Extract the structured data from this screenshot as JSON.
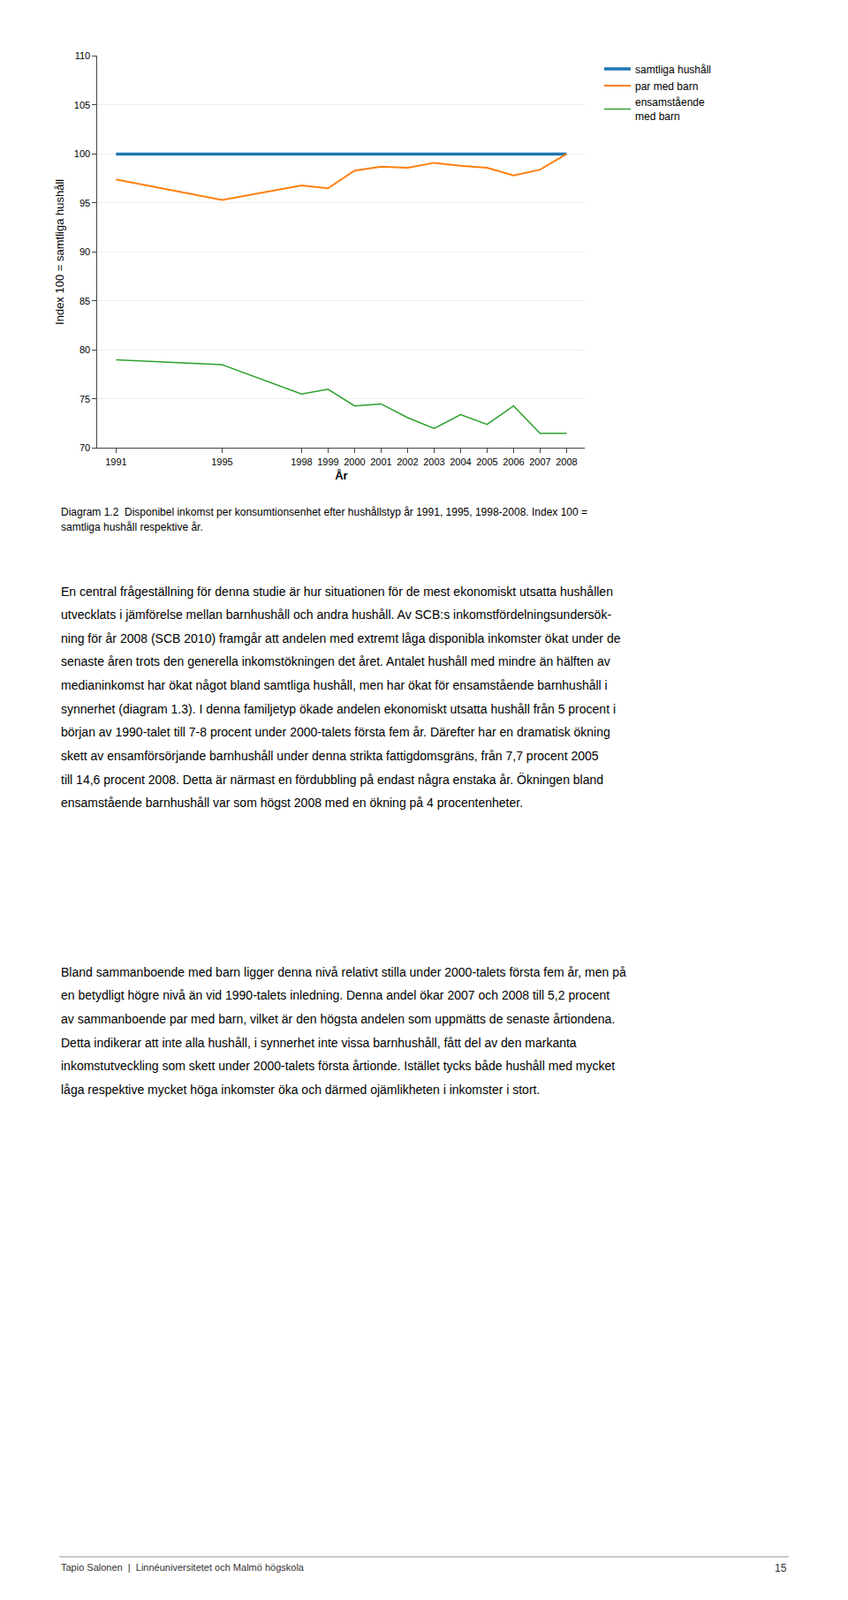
{
  "chart_data": {
    "type": "line",
    "x": [
      1991,
      1995,
      1998,
      1999,
      2000,
      2001,
      2002,
      2003,
      2004,
      2005,
      2006,
      2007,
      2008
    ],
    "xlabel": "År",
    "ylabel": "Index 100 = samtliga hushåll",
    "series": [
      {
        "name": "samtliga hushåll",
        "values": [
          100,
          100,
          100,
          100,
          100,
          100,
          100,
          100,
          100,
          100,
          100,
          100,
          100
        ]
      },
      {
        "name": "par med barn",
        "values": [
          97.4,
          95.3,
          96.8,
          96.5,
          98.3,
          98.7,
          98.6,
          99.1,
          98.8,
          98.6,
          97.8,
          98.4,
          100.0
        ]
      },
      {
        "name": "ensamstående\nmed barn",
        "values": [
          79.0,
          78.5,
          75.5,
          76.0,
          74.3,
          74.5,
          73.1,
          72.0,
          73.4,
          72.4,
          74.3,
          71.5,
          71.5
        ]
      }
    ],
    "xlim": [
      1990.3,
      2008.7
    ],
    "xticks": [
      1991,
      1995,
      1998,
      1999,
      2000,
      2001,
      2002,
      2003,
      2004,
      2005,
      2006,
      2007,
      2008
    ],
    "ylim": [
      70,
      110
    ],
    "yticks": [
      70,
      75,
      80,
      85,
      90,
      95,
      100,
      105,
      110
    ],
    "grid": true,
    "legend": "right",
    "annotations": [
      "Diagram 1.2  Disponibel inkomst per konsumtionsenhet efter hushållstyp år 1991, 1995, 1998-2008. Index 100 =\nsamtliga hushåll respektive år.",
      "En central frågeställning för denna studie är hur situationen för de mest ekonomiskt utsatta hushållen\nutvecklats i jämförelse mellan barnhushåll och andra hushåll. Av SCB:s inkomstfördelningsundersök-\nning för år 2008 (SCB 2010) framgår att andelen med extremt låga disponibla inkomster ökat under de\nsenaste åren trots den generella inkomstökningen det året. Antalet hushåll med mindre än hälften av\nmedianinkomst har ökat något bland samtliga hushåll, men har ökat för ensamstående barnhushåll i\nsynnerhet (diagram 1.3). I denna familjetyp ökade andelen ekonomiskt utsatta hushåll från 5 procent i\nbörjan av 1990-talet till 7-8 procent under 2000-talets första fem år. Därefter har en dramatisk ökning\nskett av ensamförsörjande barnhushåll under denna strikta fattigdomsgräns, från 7,7 procent 2005\ntill 14,6 procent 2008. Detta är närmast en fördubbling på endast några enstaka år. Ökningen bland\nensamstående barnhushåll var som högst 2008 med en ökning på 4 procentenheter.",
      "Bland sammanboende med barn ligger denna nivå relativt stilla under 2000-talets första fem år, men på\nen betydligt högre nivå än vid 1990-talets inledning. Denna andel ökar 2007 och 2008 till 5,2 procent\nav sammanboende par med barn, vilket är den högsta andelen som uppmätts de senaste årtiondena.\nDetta indikerar att inte alla hushåll, i synnerhet inte vissa barnhushåll, fått del av den markanta\ninkomstutveckling som skett under 2000-talets första årtionde. Istället tycks både hushåll med mycket\nlåga respektive mycket höga inkomster öka och därmed ojämlikheten i inkomster i stort.",
      "Tapio Salonen  |  Linnéuniversitetet och Malmö högskola",
      "15"
    ]
  }
}
